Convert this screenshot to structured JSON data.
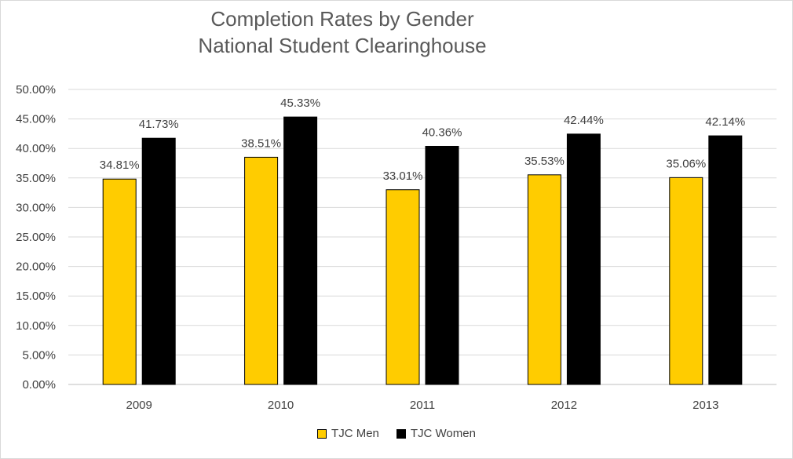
{
  "chart_data": {
    "type": "bar",
    "title": [
      "Completion Rates by Gender",
      "National Student Clearinghouse"
    ],
    "categories": [
      "2009",
      "2010",
      "2011",
      "2012",
      "2013"
    ],
    "series": [
      {
        "name": "TJC Men",
        "color": "#FFCC00",
        "values": [
          34.81,
          38.51,
          33.01,
          35.53,
          35.06
        ],
        "labels": [
          "34.81%",
          "38.51%",
          "33.01%",
          "35.53%",
          "35.06%"
        ]
      },
      {
        "name": "TJC Women",
        "color": "#000000",
        "values": [
          41.73,
          45.33,
          40.36,
          42.44,
          42.14
        ],
        "labels": [
          "41.73%",
          "45.33%",
          "40.36%",
          "42.44%",
          "42.14%"
        ]
      }
    ],
    "ylim": [
      0,
      50
    ],
    "yticks": [
      "0.00%",
      "5.00%",
      "10.00%",
      "15.00%",
      "20.00%",
      "25.00%",
      "30.00%",
      "35.00%",
      "40.00%",
      "45.00%",
      "50.00%"
    ],
    "grid": true,
    "legend_position": "bottom"
  }
}
